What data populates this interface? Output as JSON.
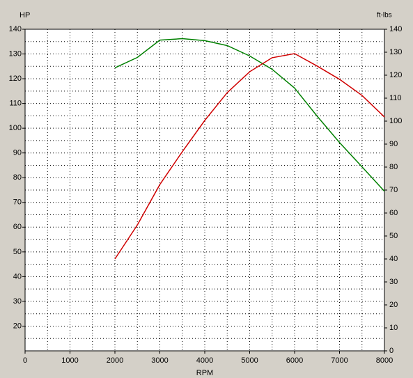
{
  "chart_data": {
    "type": "line",
    "y_label": "HP",
    "y2_label": "ft-lbs",
    "x_label": "RPM",
    "x": [
      2000,
      2500,
      3000,
      3500,
      4000,
      4500,
      5000,
      5500,
      6000,
      6500,
      7000,
      7500,
      8000
    ],
    "series": [
      {
        "color": "#008000",
        "values": [
          124.4,
          128.6,
          135.6,
          136.2,
          135.4,
          133.4,
          129.2,
          123.8,
          116.2,
          104.9,
          94.2,
          84.4,
          74.5
        ]
      },
      {
        "color": "#d00000",
        "axis": "y2",
        "values": [
          40,
          54.8,
          72.4,
          86.7,
          100.3,
          112.4,
          121.5,
          127.6,
          129.4,
          124,
          118.2,
          111.2,
          101.8
        ]
      }
    ],
    "xlim": [
      0,
      8000
    ],
    "xticks": [
      0,
      1000,
      2000,
      3000,
      4000,
      5000,
      6000,
      7000,
      8000
    ],
    "ylim": [
      10,
      140
    ],
    "yticks": [
      20,
      30,
      40,
      50,
      60,
      70,
      80,
      90,
      100,
      110,
      120,
      130,
      140
    ],
    "y2lim": [
      0,
      140
    ],
    "y2ticks": [
      0,
      10,
      20,
      30,
      40,
      50,
      60,
      70,
      80,
      90,
      100,
      110,
      120,
      130,
      140
    ],
    "grid": true
  }
}
